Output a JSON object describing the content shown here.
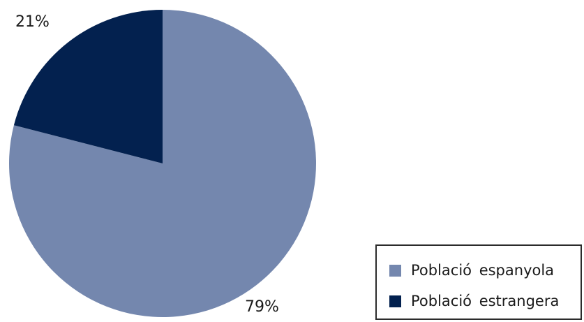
{
  "chart_data": {
    "type": "pie",
    "title": "",
    "start_angle_deg": 0,
    "direction": "clockwise",
    "slices": [
      {
        "name": "Població espanyola",
        "value": 79,
        "label": "79%",
        "color": "#7487ae"
      },
      {
        "name": "Població estrangera",
        "value": 21,
        "label": "21%",
        "color": "#03214f"
      }
    ],
    "legend": {
      "placement": "bottom-right",
      "entries": [
        "Població espanyola",
        "Població estrangera"
      ]
    }
  }
}
